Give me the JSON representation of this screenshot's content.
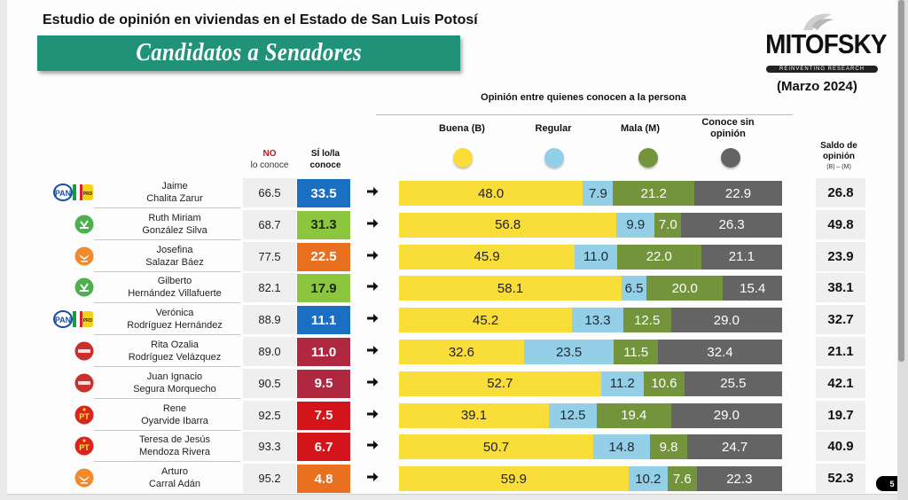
{
  "subtitle": "Estudio de opinión en viviendas en el Estado de San Luis Potosí",
  "banner_title": "Candidatos a Senadores",
  "logo": {
    "name": "MITOFSKY",
    "tagline": "REINVENTING RESEARCH"
  },
  "date": "(Marzo 2024)",
  "opinion_header": "Opinión entre quienes conocen a la persona",
  "columns": {
    "no_top": "NO",
    "no_bottom": "lo conoce",
    "si_top": "SÍ lo/la",
    "si_bottom": "conoce",
    "saldo_top": "Saldo de",
    "saldo_bottom": "opinión",
    "saldo_formula": "(B) – (M)"
  },
  "legend": [
    {
      "label": "Buena (B)",
      "color": "#f9de3a"
    },
    {
      "label": "Regular",
      "color": "#93cfe6"
    },
    {
      "label": "Mala (M)",
      "color": "#73943a"
    },
    {
      "label": "Conoce sin opinión",
      "color": "#646464"
    }
  ],
  "colors": {
    "no_label": "#c0161f",
    "banner": "#1f9277",
    "party_fill": {
      "PAN-PRI-PRD": "#1b6fc2",
      "PVEM": "#8cc63f",
      "MC": "#e8701e",
      "MORENA": "#b0283f",
      "PT": "#d4141b"
    }
  },
  "chart_data": {
    "type": "bar",
    "stacked": true,
    "orientation": "horizontal",
    "title": "Candidatos a Senadores",
    "subtitle": "Opinión entre quienes conocen a la persona",
    "categories": [
      "Jaime Chalita Zarur",
      "Ruth Miriam González Silva",
      "Josefina Salazar Báez",
      "Gilberto Hernández Villafuerte",
      "Verónica Rodríguez Hernández",
      "Rita Ozalia Rodríguez Velázquez",
      "Juan Ignacio Segura Morquecho",
      "Rene Oyarvide Ibarra",
      "Teresa de Jesús Mendoza Rivera",
      "Arturo Carral Adán"
    ],
    "series": [
      {
        "name": "Buena (B)",
        "values": [
          48.0,
          56.8,
          45.9,
          58.1,
          45.2,
          32.6,
          52.7,
          39.1,
          50.7,
          59.9
        ]
      },
      {
        "name": "Regular",
        "values": [
          7.9,
          9.9,
          11.0,
          6.5,
          13.3,
          23.5,
          11.2,
          12.5,
          14.8,
          10.2
        ]
      },
      {
        "name": "Mala (M)",
        "values": [
          21.2,
          7.0,
          22.0,
          20.0,
          12.5,
          11.5,
          10.6,
          19.4,
          9.8,
          7.6
        ]
      },
      {
        "name": "Conoce sin opinión",
        "values": [
          22.9,
          26.3,
          21.1,
          15.4,
          29.0,
          32.4,
          25.5,
          29.0,
          24.7,
          22.3
        ]
      }
    ],
    "xlim": [
      0,
      100
    ],
    "grid": false,
    "legend_position": "top"
  },
  "candidates": [
    {
      "first": "Jaime",
      "last": "Chalita Zarur",
      "party": "PAN-PRI-PRD",
      "no_conoce": "66.5",
      "si_conoce": "33.5",
      "saldo": "26.8",
      "values": [
        "48.0",
        "7.9",
        "21.2",
        "22.9"
      ]
    },
    {
      "first": "Ruth Miriam",
      "last": "González Silva",
      "party": "PVEM",
      "no_conoce": "68.7",
      "si_conoce": "31.3",
      "saldo": "49.8",
      "values": [
        "56.8",
        "9.9",
        "7.0",
        "26.3"
      ]
    },
    {
      "first": "Josefina",
      "last": "Salazar Báez",
      "party": "MC",
      "no_conoce": "77.5",
      "si_conoce": "22.5",
      "saldo": "23.9",
      "values": [
        "45.9",
        "11.0",
        "22.0",
        "21.1"
      ]
    },
    {
      "first": "Gilberto",
      "last": "Hernández Villafuerte",
      "party": "PVEM",
      "no_conoce": "82.1",
      "si_conoce": "17.9",
      "saldo": "38.1",
      "values": [
        "58.1",
        "6.5",
        "20.0",
        "15.4"
      ]
    },
    {
      "first": "Verónica",
      "last": "Rodríguez Hernández",
      "party": "PAN-PRI-PRD",
      "no_conoce": "88.9",
      "si_conoce": "11.1",
      "saldo": "32.7",
      "values": [
        "45.2",
        "13.3",
        "12.5",
        "29.0"
      ]
    },
    {
      "first": "Rita Ozalia",
      "last": "Rodríguez Velázquez",
      "party": "MORENA",
      "no_conoce": "89.0",
      "si_conoce": "11.0",
      "saldo": "21.1",
      "values": [
        "32.6",
        "23.5",
        "11.5",
        "32.4"
      ]
    },
    {
      "first": "Juan Ignacio",
      "last": "Segura Morquecho",
      "party": "MORENA",
      "no_conoce": "90.5",
      "si_conoce": "9.5",
      "saldo": "42.1",
      "values": [
        "52.7",
        "11.2",
        "10.6",
        "25.5"
      ]
    },
    {
      "first": "Rene",
      "last": "Oyarvide Ibarra",
      "party": "PT",
      "no_conoce": "92.5",
      "si_conoce": "7.5",
      "saldo": "19.7",
      "values": [
        "39.1",
        "12.5",
        "19.4",
        "29.0"
      ]
    },
    {
      "first": "Teresa de Jesús",
      "last": "Mendoza Rivera",
      "party": "PT",
      "no_conoce": "93.3",
      "si_conoce": "6.7",
      "saldo": "40.9",
      "values": [
        "50.7",
        "14.8",
        "9.8",
        "24.7"
      ]
    },
    {
      "first": "Arturo",
      "last": "Carral Adán",
      "party": "MC",
      "no_conoce": "95.2",
      "si_conoce": "4.8",
      "saldo": "52.3",
      "values": [
        "59.9",
        "10.2",
        "7.6",
        "22.3"
      ]
    }
  ],
  "page_number": "5"
}
